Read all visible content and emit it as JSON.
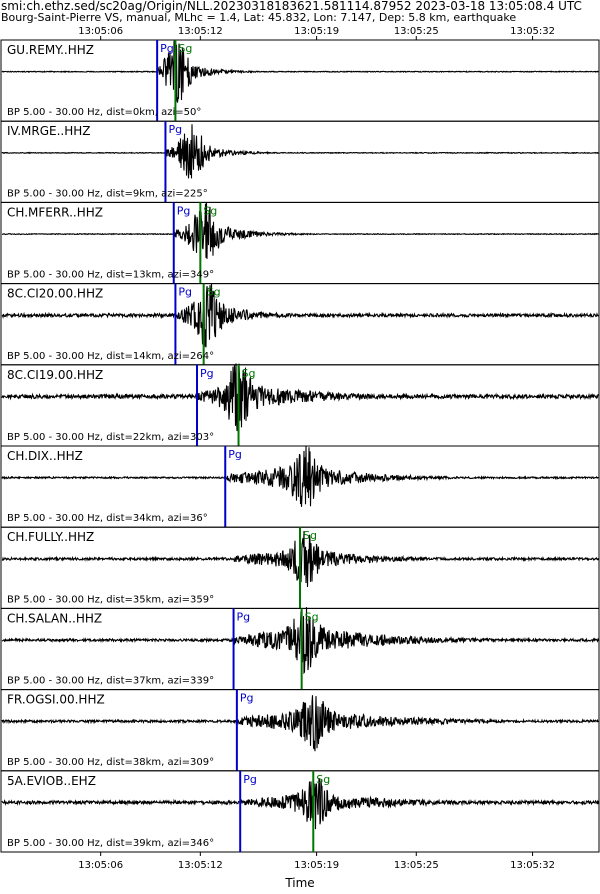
{
  "header": {
    "line1": "smi:ch.ethz.sed/sc20ag/Origin/NLL.20230318183621.581114.87952 2023-03-18 13:05:08.4 UTC",
    "line2": "Bourg-Saint-Pierre VS, manual, MLhc = 1.4, Lat: 45.832, Lon: 7.147, Dep: 5.8 km, earthquake"
  },
  "chart_data": {
    "type": "line",
    "title": "",
    "xlabel": "Time",
    "ylabel": "",
    "x_ticks": [
      "13:05:06",
      "13:05:12",
      "13:05:19",
      "13:05:25",
      "13:05:32"
    ],
    "tick_times_s": [
      6,
      12,
      19,
      25,
      32
    ],
    "xlim_s": [
      0,
      36
    ],
    "grid": false,
    "pick_colors": {
      "Pg": "#0000cc",
      "Sg": "#007700"
    },
    "traces": [
      {
        "station": "GU.REMY..HHZ",
        "filter": "BP 5.00 - 30.00 Hz, dist=0km, azi=50°",
        "picks": [
          {
            "phase": "Pg",
            "time_s": 9.4
          },
          {
            "phase": "Sg",
            "time_s": 10.5
          }
        ],
        "amplitude": 0.7,
        "energy_start_s": 9.4,
        "peak_s": 10.6,
        "decay_s": 1.5,
        "noise": 0.01
      },
      {
        "station": "IV.MRGE..HHZ",
        "filter": "BP 5.00 - 30.00 Hz, dist=9km, azi=225°",
        "picks": [
          {
            "phase": "Pg",
            "time_s": 9.9
          }
        ],
        "amplitude": 0.6,
        "energy_start_s": 9.9,
        "peak_s": 11.5,
        "decay_s": 1.6,
        "noise": 0.01
      },
      {
        "station": "CH.MFERR..HHZ",
        "filter": "BP 5.00 - 30.00 Hz, dist=13km, azi=349°",
        "picks": [
          {
            "phase": "Pg",
            "time_s": 10.4
          },
          {
            "phase": "Sg",
            "time_s": 12.0
          }
        ],
        "amplitude": 0.7,
        "energy_start_s": 10.4,
        "peak_s": 12.3,
        "decay_s": 2.0,
        "noise": 0.01
      },
      {
        "station": "8C.CI20.00.HHZ",
        "filter": "BP 5.00 - 30.00 Hz, dist=14km, azi=264°",
        "picks": [
          {
            "phase": "Pg",
            "time_s": 10.5
          },
          {
            "phase": "Sg",
            "time_s": 12.2
          }
        ],
        "amplitude": 0.75,
        "energy_start_s": 10.5,
        "peak_s": 12.4,
        "decay_s": 2.4,
        "noise": 0.04
      },
      {
        "station": "8C.CI19.00.HHZ",
        "filter": "BP 5.00 - 30.00 Hz, dist=22km, azi=303°",
        "picks": [
          {
            "phase": "Pg",
            "time_s": 11.8
          },
          {
            "phase": "Sg",
            "time_s": 14.3
          }
        ],
        "amplitude": 0.75,
        "energy_start_s": 11.8,
        "peak_s": 14.3,
        "decay_s": 4.5,
        "noise": 0.05
      },
      {
        "station": "CH.DIX..HHZ",
        "filter": "BP 5.00 - 30.00 Hz, dist=34km, azi=36°",
        "picks": [
          {
            "phase": "Pg",
            "time_s": 13.5
          }
        ],
        "amplitude": 0.7,
        "energy_start_s": 13.5,
        "peak_s": 18.3,
        "decay_s": 3.5,
        "noise": 0.02
      },
      {
        "station": "CH.FULLY..HHZ",
        "filter": "BP 5.00 - 30.00 Hz, dist=35km, azi=359°",
        "picks": [
          {
            "phase": "Sg",
            "time_s": 18.0
          }
        ],
        "amplitude": 0.6,
        "energy_start_s": 14.0,
        "peak_s": 18.3,
        "decay_s": 3.5,
        "noise": 0.03
      },
      {
        "station": "CH.SALAN..HHZ",
        "filter": "BP 5.00 - 30.00 Hz, dist=37km, azi=339°",
        "picks": [
          {
            "phase": "Pg",
            "time_s": 14.0
          },
          {
            "phase": "Sg",
            "time_s": 18.1
          }
        ],
        "amplitude": 0.75,
        "energy_start_s": 14.0,
        "peak_s": 18.3,
        "decay_s": 5.0,
        "noise": 0.03
      },
      {
        "station": "FR.OGSI.00.HHZ",
        "filter": "BP 5.00 - 30.00 Hz, dist=38km, azi=309°",
        "picks": [
          {
            "phase": "Pg",
            "time_s": 14.2
          }
        ],
        "amplitude": 0.65,
        "energy_start_s": 14.2,
        "peak_s": 18.8,
        "decay_s": 5.0,
        "noise": 0.03
      },
      {
        "station": "5A.EVIOB..EHZ",
        "filter": "BP 5.00 - 30.00 Hz, dist=39km, azi=346°",
        "picks": [
          {
            "phase": "Pg",
            "time_s": 14.4
          },
          {
            "phase": "Sg",
            "time_s": 18.8
          }
        ],
        "amplitude": 0.55,
        "energy_start_s": 14.4,
        "peak_s": 18.9,
        "decay_s": 5.0,
        "noise": 0.04
      }
    ]
  }
}
